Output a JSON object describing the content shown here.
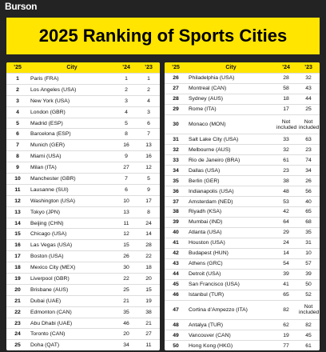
{
  "header": {
    "brand": "Burson",
    "title": "2025 Ranking of Sports Cities"
  },
  "columns": [
    "’25",
    "City",
    "’24",
    "’23"
  ],
  "tables": [
    {
      "rows": [
        [
          1,
          "Paris (FRA)",
          1,
          1
        ],
        [
          2,
          "Los Angeles (USA)",
          2,
          2
        ],
        [
          3,
          "New York (USA)",
          3,
          4
        ],
        [
          4,
          "London (GBR)",
          4,
          3
        ],
        [
          5,
          "Madrid (ESP)",
          5,
          6
        ],
        [
          6,
          "Barcelona (ESP)",
          8,
          7
        ],
        [
          7,
          "Munich (GER)",
          16,
          13
        ],
        [
          8,
          "Miami (USA)",
          9,
          16
        ],
        [
          9,
          "Milan (ITA)",
          27,
          12
        ],
        [
          10,
          "Manchester (GBR)",
          7,
          5
        ],
        [
          11,
          "Lausanne (SUI)",
          6,
          9
        ],
        [
          12,
          "Washington (USA)",
          10,
          17
        ],
        [
          13,
          "Tokyo (JPN)",
          13,
          8
        ],
        [
          14,
          "Beijing (CHN)",
          11,
          24
        ],
        [
          15,
          "Chicago (USA)",
          12,
          14
        ],
        [
          16,
          "Las Vegas (USA)",
          15,
          28
        ],
        [
          17,
          "Boston (USA)",
          26,
          22
        ],
        [
          18,
          "Mexico City (MEX)",
          30,
          18
        ],
        [
          19,
          "Liverpool (GBR)",
          22,
          20
        ],
        [
          20,
          "Brisbane (AUS)",
          25,
          15
        ],
        [
          21,
          "Dubai (UAE)",
          21,
          19
        ],
        [
          22,
          "Edmonton (CAN)",
          35,
          38
        ],
        [
          23,
          "Abu Dhabi (UAE)",
          46,
          21
        ],
        [
          24,
          "Toronto (CAN)",
          20,
          27
        ],
        [
          25,
          "Doha (QAT)",
          34,
          11
        ]
      ]
    },
    {
      "rows": [
        [
          26,
          "Philadelphia (USA)",
          28,
          32
        ],
        [
          27,
          "Montreal (CAN)",
          58,
          43
        ],
        [
          28,
          "Sydney (AUS)",
          18,
          44
        ],
        [
          29,
          "Rome (ITA)",
          17,
          25
        ],
        [
          30,
          "Monaco (MON)",
          "Not included",
          "Not included"
        ],
        [
          31,
          "Salt Lake City (USA)",
          33,
          63
        ],
        [
          32,
          "Melbourne (AUS)",
          32,
          23
        ],
        [
          33,
          "Rio de Janeiro (BRA)",
          61,
          74
        ],
        [
          34,
          "Dallas (USA)",
          23,
          34
        ],
        [
          35,
          "Berlin (GER)",
          38,
          26
        ],
        [
          36,
          "Indianapolis (USA)",
          48,
          56
        ],
        [
          37,
          "Amsterdam (NED)",
          53,
          40
        ],
        [
          38,
          "Riyadh (KSA)",
          42,
          65
        ],
        [
          39,
          "Mumbai (IND)",
          64,
          68
        ],
        [
          40,
          "Atlanta (USA)",
          29,
          35
        ],
        [
          41,
          "Houston (USA)",
          24,
          31
        ],
        [
          42,
          "Budapest (HUN)",
          14,
          10
        ],
        [
          43,
          "Athens (GRC)",
          54,
          57
        ],
        [
          44,
          "Detroit (USA)",
          39,
          39
        ],
        [
          45,
          "San Francisco (USA)",
          41,
          50
        ],
        [
          46,
          "Istanbul (TUR)",
          65,
          52
        ],
        [
          47,
          "Cortina d’Ampezzo (ITA)",
          82,
          "Not included"
        ],
        [
          48,
          "Antalya (TUR)",
          62,
          82
        ],
        [
          49,
          "Vancouver (CAN)",
          19,
          45
        ],
        [
          50,
          "Hong Kong (HKG)",
          77,
          61
        ]
      ]
    }
  ]
}
